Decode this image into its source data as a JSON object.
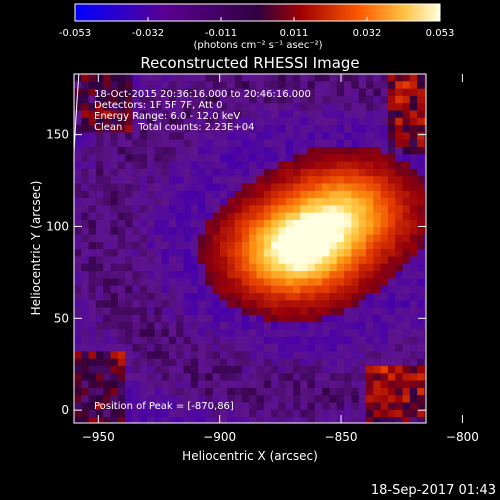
{
  "chart_data": {
    "type": "heatmap",
    "title": "Reconstructed RHESSI Image",
    "xlabel": "Heliocentric X (arcsec)",
    "ylabel": "Heliocentric Y (arcsec)",
    "xlim": [
      -960,
      -815
    ],
    "ylim": [
      -7,
      183
    ],
    "xticks": [
      -950,
      -900,
      -850,
      -800
    ],
    "yticks": [
      0,
      50,
      100,
      150
    ],
    "colorbar": {
      "range": [
        -0.053,
        0.053
      ],
      "ticks": [
        "-0.053",
        "-0.032",
        "-0.011",
        "0.011",
        "0.032",
        "0.053"
      ],
      "label": "(photons cm⁻² s⁻¹ asec⁻²)"
    },
    "annotations": [
      "18-Oct-2015 20:36:16.000 to 20:46:16.000",
      "Detectors: 1F 5F 7F, Att 0",
      "Energy Range: 6.0 - 12.0 keV",
      "Clean     Total counts: 2.23E+04"
    ],
    "peak_label": "Position of Peak = [-870,86]",
    "sources": [
      {
        "x": -870,
        "y": 86,
        "peak": 1.0
      },
      {
        "x": -848,
        "y": 108,
        "peak": 0.75
      }
    ],
    "limb_curve": [
      [
        -958,
        183
      ],
      [
        -960,
        140
      ]
    ],
    "footer": "18-Sep-2017 01:43"
  }
}
